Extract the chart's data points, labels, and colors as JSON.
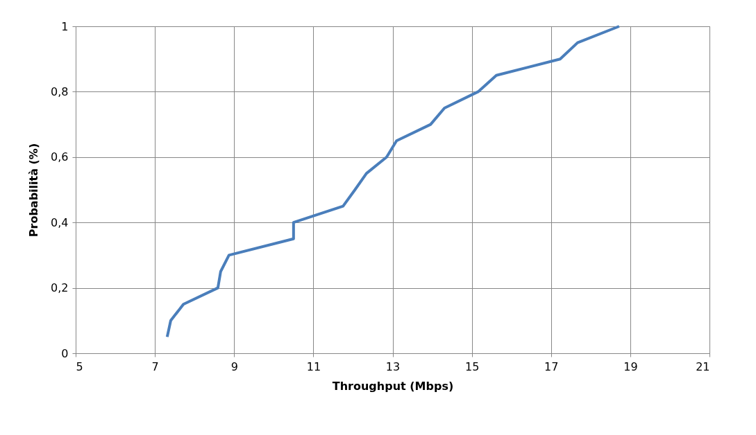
{
  "chart_data": {
    "type": "line",
    "xlabel": "Throughput (Mbps)",
    "ylabel": "Probabilità (%)",
    "x": [
      7.31,
      7.4,
      7.72,
      8.59,
      8.66,
      8.87,
      10.5,
      10.5,
      11.75,
      12.05,
      12.34,
      12.85,
      13.1,
      13.96,
      14.31,
      15.16,
      15.62,
      17.23,
      17.67,
      18.72
    ],
    "series": [
      {
        "color": "#4a7ebb",
        "values": [
          0.05,
          0.1,
          0.15,
          0.2,
          0.25,
          0.3,
          0.35,
          0.4,
          0.45,
          0.5,
          0.55,
          0.6,
          0.65,
          0.7,
          0.75,
          0.8,
          0.85,
          0.9,
          0.95,
          1
        ]
      }
    ],
    "xlim": [
      5,
      21
    ],
    "xticks": [
      5,
      7,
      9,
      11,
      13,
      15,
      17,
      19,
      21
    ],
    "ylim": [
      0,
      1
    ],
    "yticks": [
      0,
      {
        "value": 0.2,
        "label": "0,2"
      },
      {
        "value": 0.4,
        "label": "0,4"
      },
      {
        "value": 0.6,
        "label": "0,6"
      },
      {
        "value": 0.8,
        "label": "0,8"
      },
      1
    ],
    "grid": true,
    "marker": "none",
    "line_style": "solid"
  }
}
